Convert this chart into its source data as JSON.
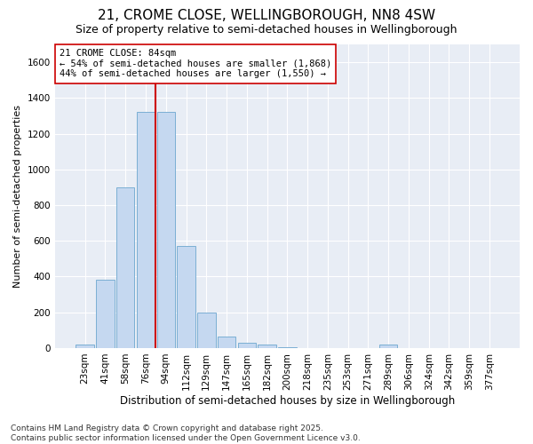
{
  "title": "21, CROME CLOSE, WELLINGBOROUGH, NN8 4SW",
  "subtitle": "Size of property relative to semi-detached houses in Wellingborough",
  "xlabel": "Distribution of semi-detached houses by size in Wellingborough",
  "ylabel": "Number of semi-detached properties",
  "categories": [
    "23sqm",
    "41sqm",
    "58sqm",
    "76sqm",
    "94sqm",
    "112sqm",
    "129sqm",
    "147sqm",
    "165sqm",
    "182sqm",
    "200sqm",
    "218sqm",
    "235sqm",
    "253sqm",
    "271sqm",
    "289sqm",
    "306sqm",
    "324sqm",
    "342sqm",
    "359sqm",
    "377sqm"
  ],
  "values": [
    20,
    385,
    900,
    1320,
    1320,
    570,
    200,
    65,
    28,
    18,
    5,
    0,
    0,
    0,
    0,
    18,
    0,
    0,
    0,
    0,
    0
  ],
  "bar_color": "#c5d8f0",
  "bar_edge_color": "#7bafd4",
  "vline_x": 3.5,
  "vline_color": "#cc0000",
  "annotation_text": "21 CROME CLOSE: 84sqm\n← 54% of semi-detached houses are smaller (1,868)\n44% of semi-detached houses are larger (1,550) →",
  "annotation_box_color": "#ffffff",
  "annotation_box_edge_color": "#cc0000",
  "ylim": [
    0,
    1700
  ],
  "yticks": [
    0,
    200,
    400,
    600,
    800,
    1000,
    1200,
    1400,
    1600
  ],
  "background_color": "#ffffff",
  "plot_bg_color": "#e8edf5",
  "grid_color": "#ffffff",
  "footer_text": "Contains HM Land Registry data © Crown copyright and database right 2025.\nContains public sector information licensed under the Open Government Licence v3.0.",
  "title_fontsize": 11,
  "subtitle_fontsize": 9,
  "xlabel_fontsize": 8.5,
  "ylabel_fontsize": 8,
  "tick_fontsize": 7.5,
  "annotation_fontsize": 7.5,
  "footer_fontsize": 6.5
}
